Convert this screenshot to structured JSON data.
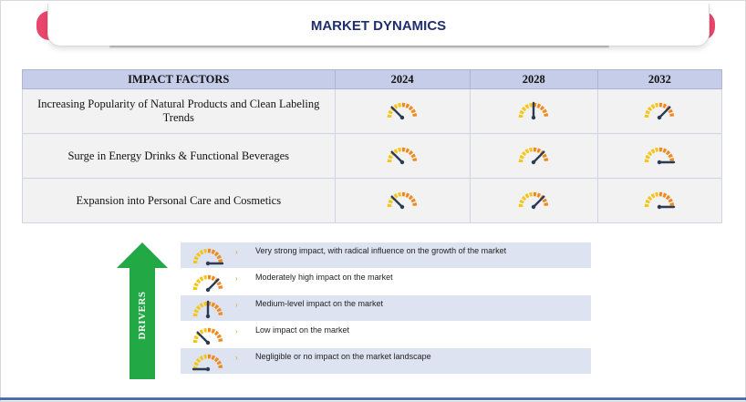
{
  "title": "MARKET DYNAMICS",
  "table": {
    "headers": [
      "IMPACT FACTORS",
      "2024",
      "2028",
      "2032"
    ],
    "rows": [
      {
        "factor": "Increasing Popularity of Natural Products and Clean Labeling Trends",
        "levels": [
          2,
          3,
          4
        ]
      },
      {
        "factor": "Surge in Energy Drinks & Functional Beverages",
        "levels": [
          2,
          4,
          5
        ]
      },
      {
        "factor": "Expansion into Personal Care and Cosmetics",
        "levels": [
          2,
          4,
          5
        ]
      }
    ]
  },
  "drivers_label": "DRIVERS",
  "legend": [
    {
      "level": 5,
      "text": "Very strong impact, with radical influence on the growth of the market"
    },
    {
      "level": 4,
      "text": "Moderately high impact on the market"
    },
    {
      "level": 3,
      "text": "Medium-level impact on the market"
    },
    {
      "level": 2,
      "text": "Low impact on the market"
    },
    {
      "level": 1,
      "text": "Negligible or no impact on the market landscape"
    }
  ],
  "colors": {
    "accent_pink": "#e8476b",
    "title_navy": "#1f2e6e",
    "arrow_green": "#22a845",
    "gauge_yellow": "#f5c518",
    "gauge_orange": "#f08a1c",
    "needle": "#2b3a55",
    "header_bg": "#c5cde8",
    "legend_shade": "#dde3f1"
  },
  "bullet_glyph": "›"
}
